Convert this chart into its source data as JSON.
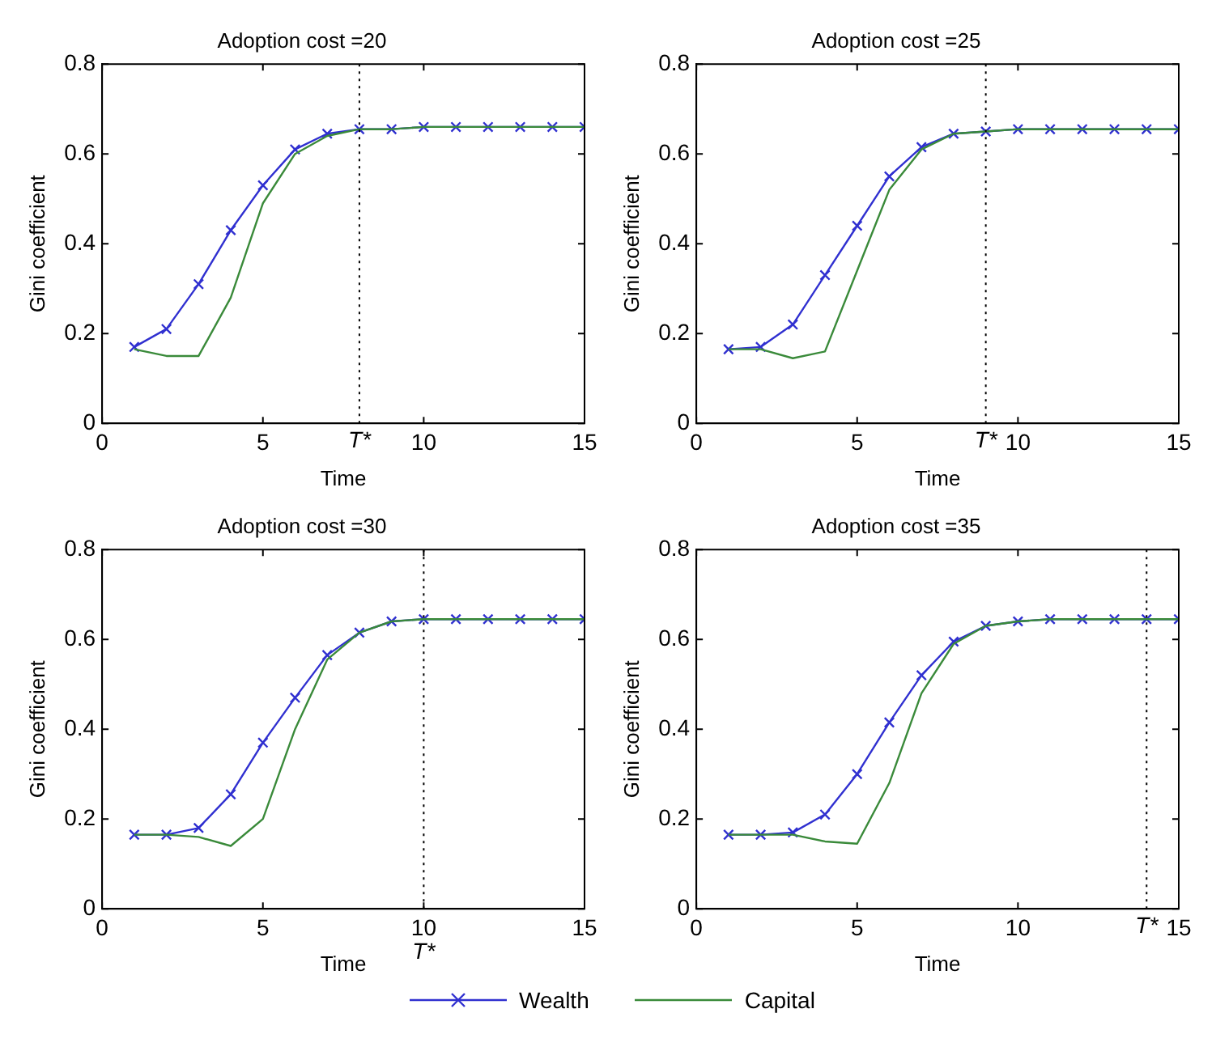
{
  "chart_data": [
    {
      "type": "line",
      "title": "Adoption cost =20",
      "xlabel": "Time",
      "ylabel": "Gini coefficient",
      "x": [
        1,
        2,
        3,
        4,
        5,
        6,
        7,
        8,
        9,
        10,
        11,
        12,
        13,
        14,
        15
      ],
      "xlim": [
        0,
        15
      ],
      "xticks": [
        0,
        5,
        10,
        15
      ],
      "ylim": [
        0,
        0.8
      ],
      "yticks": [
        0,
        0.2,
        0.4,
        0.6,
        0.8
      ],
      "grid": false,
      "legend": false,
      "series": [
        {
          "color": "#3a8a3a",
          "marker": "none",
          "values": [
            0.165,
            0.15,
            0.15,
            0.28,
            0.49,
            0.6,
            0.64,
            0.655,
            0.655,
            0.66,
            0.66,
            0.66,
            0.66,
            0.66,
            0.66
          ]
        },
        {
          "color": "#3030d0",
          "marker": "cross",
          "values": [
            0.17,
            0.21,
            0.31,
            0.43,
            0.53,
            0.61,
            0.645,
            0.655,
            0.655,
            0.66,
            0.66,
            0.66,
            0.66,
            0.66,
            0.66
          ]
        }
      ],
      "ref_lines": [
        {
          "axis": "x",
          "value": 8,
          "label": "T*",
          "line_style": "dotted",
          "color": "#000000"
        }
      ]
    },
    {
      "type": "line",
      "title": "Adoption cost =25",
      "xlabel": "Time",
      "ylabel": "Gini coefficient",
      "x": [
        1,
        2,
        3,
        4,
        5,
        6,
        7,
        8,
        9,
        10,
        11,
        12,
        13,
        14,
        15
      ],
      "xlim": [
        0,
        15
      ],
      "xticks": [
        0,
        5,
        10,
        15
      ],
      "ylim": [
        0,
        0.8
      ],
      "yticks": [
        0,
        0.2,
        0.4,
        0.6,
        0.8
      ],
      "grid": false,
      "legend": false,
      "series": [
        {
          "color": "#3a8a3a",
          "marker": "none",
          "values": [
            0.165,
            0.165,
            0.145,
            0.16,
            0.34,
            0.52,
            0.61,
            0.645,
            0.65,
            0.655,
            0.655,
            0.655,
            0.655,
            0.655,
            0.655
          ]
        },
        {
          "color": "#3030d0",
          "marker": "cross",
          "values": [
            0.165,
            0.17,
            0.22,
            0.33,
            0.44,
            0.55,
            0.615,
            0.645,
            0.65,
            0.655,
            0.655,
            0.655,
            0.655,
            0.655,
            0.655
          ]
        }
      ],
      "ref_lines": [
        {
          "axis": "x",
          "value": 9,
          "label": "T*",
          "line_style": "dotted",
          "color": "#000000"
        }
      ]
    },
    {
      "type": "line",
      "title": "Adoption cost =30",
      "xlabel": "Time",
      "ylabel": "Gini coefficient",
      "x": [
        1,
        2,
        3,
        4,
        5,
        6,
        7,
        8,
        9,
        10,
        11,
        12,
        13,
        14,
        15
      ],
      "xlim": [
        0,
        15
      ],
      "xticks": [
        0,
        5,
        10,
        15
      ],
      "ylim": [
        0,
        0.8
      ],
      "yticks": [
        0,
        0.2,
        0.4,
        0.6,
        0.8
      ],
      "grid": false,
      "legend": false,
      "series": [
        {
          "color": "#3a8a3a",
          "marker": "none",
          "values": [
            0.165,
            0.165,
            0.16,
            0.14,
            0.2,
            0.4,
            0.555,
            0.615,
            0.64,
            0.645,
            0.645,
            0.645,
            0.645,
            0.645,
            0.645
          ]
        },
        {
          "color": "#3030d0",
          "marker": "cross",
          "values": [
            0.165,
            0.165,
            0.18,
            0.255,
            0.37,
            0.47,
            0.565,
            0.615,
            0.64,
            0.645,
            0.645,
            0.645,
            0.645,
            0.645,
            0.645
          ]
        }
      ],
      "ref_lines": [
        {
          "axis": "x",
          "value": 10,
          "label": "T*",
          "line_style": "dotted",
          "color": "#000000"
        }
      ]
    },
    {
      "type": "line",
      "title": "Adoption cost =35",
      "xlabel": "Time",
      "ylabel": "Gini coefficient",
      "x": [
        1,
        2,
        3,
        4,
        5,
        6,
        7,
        8,
        9,
        10,
        11,
        12,
        13,
        14,
        15
      ],
      "xlim": [
        0,
        15
      ],
      "xticks": [
        0,
        5,
        10,
        15
      ],
      "ylim": [
        0,
        0.8
      ],
      "yticks": [
        0,
        0.2,
        0.4,
        0.6,
        0.8
      ],
      "grid": false,
      "legend": "bottom",
      "series": [
        {
          "name": "Capital",
          "color": "#3a8a3a",
          "marker": "none",
          "values": [
            0.165,
            0.165,
            0.165,
            0.15,
            0.145,
            0.28,
            0.48,
            0.59,
            0.63,
            0.64,
            0.645,
            0.645,
            0.645,
            0.645,
            0.645
          ]
        },
        {
          "name": "Wealth",
          "color": "#3030d0",
          "marker": "cross",
          "values": [
            0.165,
            0.165,
            0.17,
            0.21,
            0.3,
            0.415,
            0.52,
            0.595,
            0.63,
            0.64,
            0.645,
            0.645,
            0.645,
            0.645,
            0.645
          ]
        }
      ],
      "ref_lines": [
        {
          "axis": "x",
          "value": 14,
          "label": "T*",
          "line_style": "dotted",
          "color": "#000000"
        }
      ]
    }
  ]
}
